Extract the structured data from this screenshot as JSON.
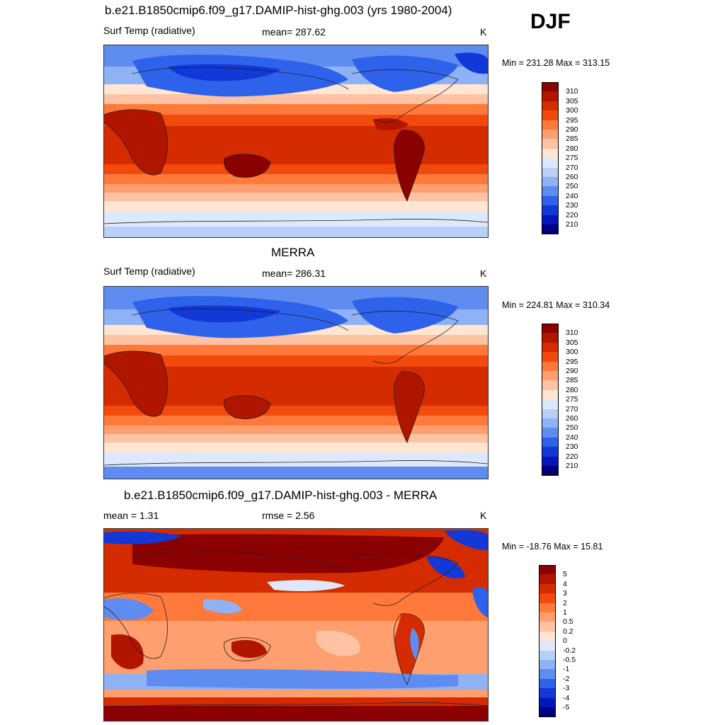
{
  "season": "DJF",
  "panels": [
    {
      "title": "b.e21.B1850cmip6.f09_g17.DAMIP-hist-ghg.003 (yrs 1980-2004)",
      "left_text": "Surf Temp (radiative)",
      "center_text": "mean= 287.62",
      "units": "K",
      "minmax": "Min = 231.28 Max = 313.15"
    },
    {
      "title": "MERRA",
      "left_text": "Surf Temp (radiative)",
      "center_text": "mean= 286.31",
      "units": "K",
      "minmax": "Min = 224.81 Max = 310.34"
    },
    {
      "title": "b.e21.B1850cmip6.f09_g17.DAMIP-hist-ghg.003 - MERRA",
      "left_text": "mean =   1.31",
      "center_text": "rmse =   2.56",
      "units": "K",
      "minmax": "Min = -18.76 Max =  15.81"
    }
  ],
  "colorbars": {
    "absolute": {
      "labels": [
        "310",
        "305",
        "300",
        "295",
        "290",
        "285",
        "280",
        "275",
        "270",
        "260",
        "250",
        "240",
        "230",
        "220",
        "210"
      ],
      "colors": [
        "#8b0000",
        "#b01500",
        "#d42b00",
        "#f24a0c",
        "#ff7a3a",
        "#ff9e6e",
        "#ffc2a2",
        "#ffe5d2",
        "#dde9fb",
        "#b8d0f8",
        "#8fb2f5",
        "#5f8cf0",
        "#2f62ea",
        "#1238d8",
        "#0416b8",
        "#000080"
      ]
    },
    "difference": {
      "labels": [
        "5",
        "4",
        "3",
        "2",
        "1",
        "0.5",
        "0.2",
        "0",
        "-0.2",
        "-0.5",
        "-1",
        "-2",
        "-3",
        "-4",
        "-5"
      ],
      "colors": [
        "#8b0000",
        "#b01500",
        "#d42b00",
        "#f24a0c",
        "#ff7a3a",
        "#ff9e6e",
        "#ffc2a2",
        "#ffe5d2",
        "#dde9fb",
        "#b8d0f8",
        "#8fb2f5",
        "#5f8cf0",
        "#2f62ea",
        "#1238d8",
        "#0416b8",
        "#000080"
      ]
    }
  },
  "chart_data": [
    {
      "type": "heatmap",
      "title": "b.e21.B1850cmip6.f09_g17.DAMIP-hist-ghg.003 (yrs 1980-2004)",
      "variable": "Surf Temp (radiative)",
      "units": "K",
      "season": "DJF",
      "mean": 287.62,
      "min": 231.28,
      "max": 313.15,
      "contour_levels": [
        210,
        220,
        230,
        240,
        250,
        260,
        270,
        275,
        280,
        285,
        290,
        295,
        300,
        305,
        310
      ]
    },
    {
      "type": "heatmap",
      "title": "MERRA",
      "variable": "Surf Temp (radiative)",
      "units": "K",
      "season": "DJF",
      "mean": 286.31,
      "min": 224.81,
      "max": 310.34,
      "contour_levels": [
        210,
        220,
        230,
        240,
        250,
        260,
        270,
        275,
        280,
        285,
        290,
        295,
        300,
        305,
        310
      ]
    },
    {
      "type": "heatmap",
      "title": "b.e21.B1850cmip6.f09_g17.DAMIP-hist-ghg.003 - MERRA",
      "units": "K",
      "season": "DJF",
      "mean": 1.31,
      "rmse": 2.56,
      "min": -18.76,
      "max": 15.81,
      "contour_levels": [
        -5,
        -4,
        -3,
        -2,
        -1,
        -0.5,
        -0.2,
        0,
        0.2,
        0.5,
        1,
        2,
        3,
        4,
        5
      ]
    }
  ]
}
